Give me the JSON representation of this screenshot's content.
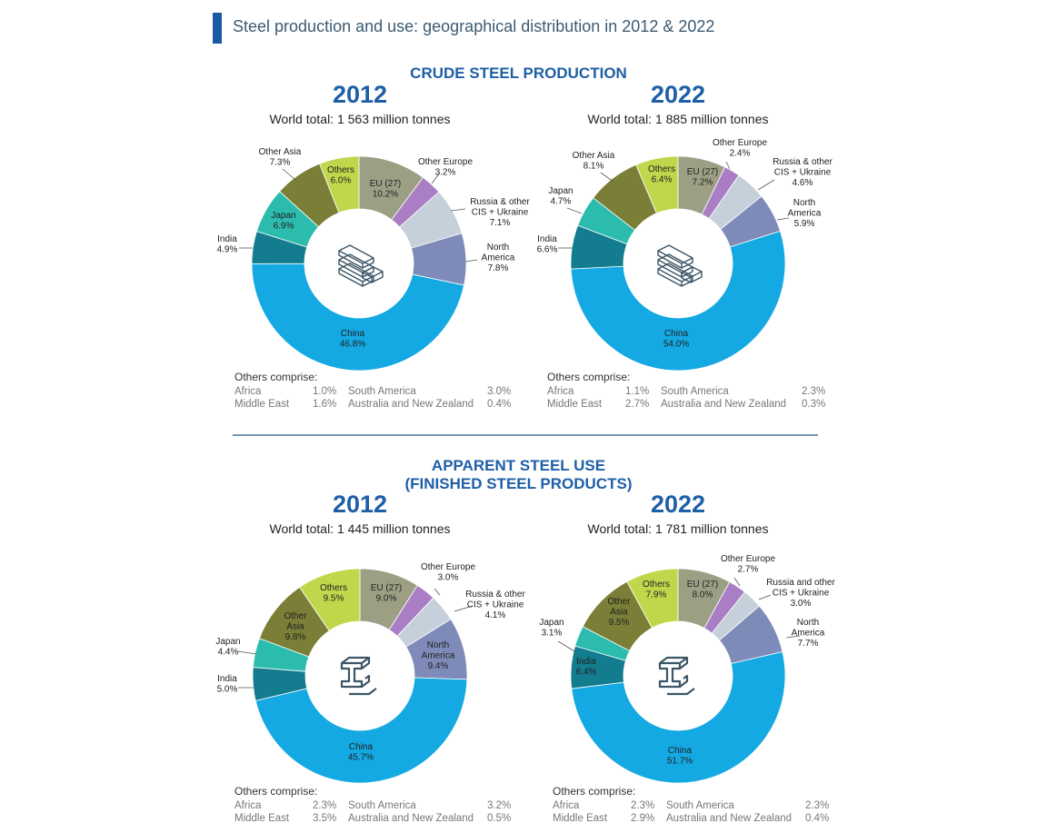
{
  "page_title": "Steel production and use: geographical distribution in 2012 & 2022",
  "sections": {
    "production_title": "CRUDE STEEL PRODUCTION",
    "use_title_1": "APPARENT STEEL USE",
    "use_title_2": "(FINISHED STEEL PRODUCTS)"
  },
  "colors": {
    "China": "#14a9e2",
    "North America": "#7e8bb8",
    "Russia & other CIS + Ukraine": "#c5d0da",
    "Other Europe": "#aa7ec4",
    "EU (27)": "#9d9f85",
    "Others": "#c0d74b",
    "Other Asia": "#7a7e36",
    "Japan": "#2bbcae",
    "India": "#137c8e"
  },
  "charts": [
    {
      "year": "2012",
      "world_total": "World total: 1 563 million tonnes",
      "icon": "steel-ingot-icon",
      "others_comprise_label": "Others comprise:",
      "others_comprise": [
        [
          "Africa",
          "1.0%",
          "South America",
          "3.0%"
        ],
        [
          "Middle East",
          "1.6%",
          "Australia and New Zealand",
          "0.4%"
        ]
      ],
      "labels": [
        [
          "EU (27)",
          "10.2%"
        ],
        [
          "Other Europe",
          "3.2%"
        ],
        [
          "Russia & other",
          "CIS + Ukraine",
          "7.1%"
        ],
        [
          "North",
          "America",
          "7.8%"
        ],
        [
          "China",
          "46.8%"
        ],
        [
          "India",
          "4.9%"
        ],
        [
          "Japan",
          "6.9%"
        ],
        [
          "Other Asia",
          "7.3%"
        ],
        [
          "Others",
          "6.0%"
        ]
      ]
    },
    {
      "year": "2022",
      "world_total": "World total: 1 885 million tonnes",
      "icon": "steel-ingot-icon",
      "others_comprise_label": "Others comprise:",
      "others_comprise": [
        [
          "Africa",
          "1.1%",
          "South America",
          "2.3%"
        ],
        [
          "Middle East",
          "2.7%",
          "Australia and New Zealand",
          "0.3%"
        ]
      ],
      "labels": [
        [
          "EU (27)",
          "7.2%"
        ],
        [
          "Other Europe",
          "2.4%"
        ],
        [
          "Russia & other",
          "CIS + Ukraine",
          "4.6%"
        ],
        [
          "North",
          "America",
          "5.9%"
        ],
        [
          "China",
          "54.0%"
        ],
        [
          "India",
          "6.6%"
        ],
        [
          "Japan",
          "4.7%"
        ],
        [
          "Other Asia",
          "8.1%"
        ],
        [
          "Others",
          "6.4%"
        ]
      ]
    },
    {
      "year": "2012",
      "world_total": "World total: 1 445 million tonnes",
      "icon": "steel-beam-icon",
      "others_comprise_label": "Others comprise:",
      "others_comprise": [
        [
          "Africa",
          "2.3%",
          "South America",
          "3.2%"
        ],
        [
          "Middle East",
          "3.5%",
          "Australia and New Zealand",
          "0.5%"
        ]
      ],
      "labels": [
        [
          "EU (27)",
          "9.0%"
        ],
        [
          "Other Europe",
          "3.0%"
        ],
        [
          "Russia & other",
          "CIS + Ukraine",
          "4.1%"
        ],
        [
          "North",
          "America",
          "9.4%"
        ],
        [
          "China",
          "45.7%"
        ],
        [
          "India",
          "5.0%"
        ],
        [
          "Japan",
          "4.4%"
        ],
        [
          "Other",
          "Asia",
          "9.8%"
        ],
        [
          "Others",
          "9.5%"
        ]
      ]
    },
    {
      "year": "2022",
      "world_total": "World total: 1 781 million tonnes",
      "icon": "steel-beam-icon",
      "others_comprise_label": "Others comprise:",
      "others_comprise": [
        [
          "Africa",
          "2.3%",
          "South America",
          "2.3%"
        ],
        [
          "Middle East",
          "2.9%",
          "Australia and New Zealand",
          "0.4%"
        ]
      ],
      "labels": [
        [
          "EU (27)",
          "8.0%"
        ],
        [
          "Other Europe",
          "2.7%"
        ],
        [
          "Russia and other",
          "CIS + Ukraine",
          "3.0%"
        ],
        [
          "North",
          "America",
          "7.7%"
        ],
        [
          "China",
          "51.7%"
        ],
        [
          "India",
          "6.4%"
        ],
        [
          "Japan",
          "3.1%"
        ],
        [
          "Other",
          "Asia",
          "9.5%"
        ],
        [
          "Others",
          "7.9%"
        ]
      ]
    }
  ],
  "chart_data": [
    {
      "type": "pie",
      "categories": [
        "EU (27)",
        "Other Europe",
        "Russia & other CIS + Ukraine",
        "North America",
        "China",
        "India",
        "Japan",
        "Other Asia",
        "Others"
      ],
      "values": [
        10.2,
        3.2,
        7.1,
        7.8,
        46.8,
        4.9,
        6.9,
        7.3,
        6.0
      ]
    },
    {
      "type": "pie",
      "categories": [
        "EU (27)",
        "Other Europe",
        "Russia & other CIS + Ukraine",
        "North America",
        "China",
        "India",
        "Japan",
        "Other Asia",
        "Others"
      ],
      "values": [
        7.2,
        2.4,
        4.6,
        5.9,
        54.0,
        6.6,
        4.7,
        8.1,
        6.4
      ]
    },
    {
      "type": "pie",
      "categories": [
        "EU (27)",
        "Other Europe",
        "Russia & other CIS + Ukraine",
        "North America",
        "China",
        "India",
        "Japan",
        "Other Asia",
        "Others"
      ],
      "values": [
        9.0,
        3.0,
        4.1,
        9.4,
        45.7,
        5.0,
        4.4,
        9.8,
        9.5
      ]
    },
    {
      "type": "pie",
      "categories": [
        "EU (27)",
        "Other Europe",
        "Russia and other CIS + Ukraine",
        "North America",
        "China",
        "India",
        "Japan",
        "Other Asia",
        "Others"
      ],
      "values": [
        8.0,
        2.7,
        3.0,
        7.7,
        51.7,
        6.4,
        3.1,
        9.5,
        7.9
      ]
    }
  ]
}
